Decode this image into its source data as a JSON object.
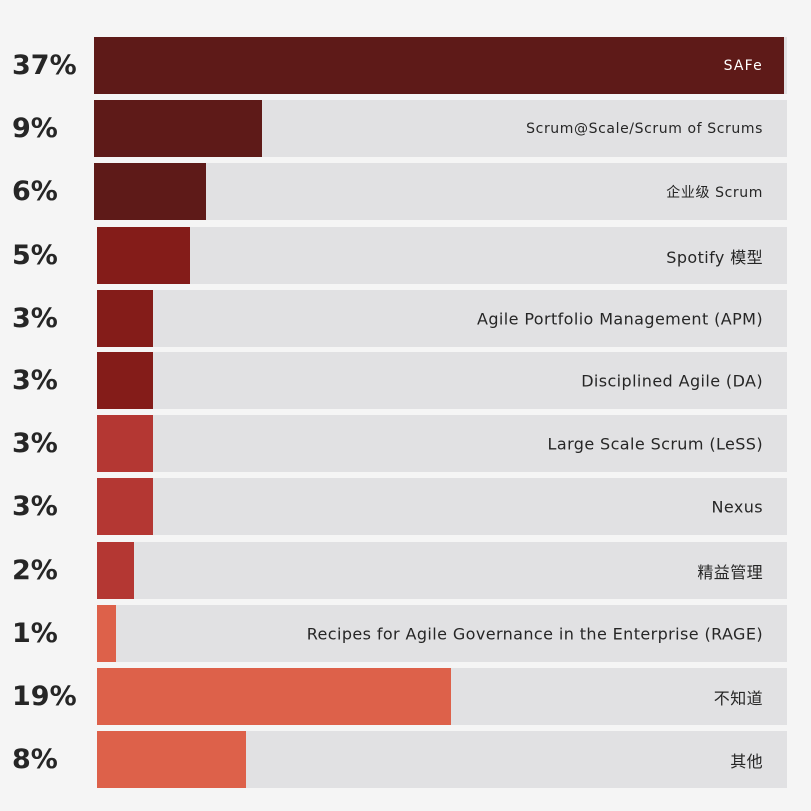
{
  "chart_data": {
    "type": "bar",
    "orientation": "horizontal",
    "categories": [
      "SAFe",
      "Scrum@Scale/Scrum of Scrums",
      "企业级 Scrum",
      "Spotify 模型",
      "Agile Portfolio Management (APM)",
      "Disciplined Agile (DA)",
      "Large Scale Scrum (LeSS)",
      "Nexus",
      "精益管理",
      "Recipes for Agile Governance in the Enterprise (RAGE)",
      "不知道",
      "其他"
    ],
    "values": [
      37,
      9,
      6,
      5,
      3,
      3,
      3,
      3,
      2,
      1,
      19,
      8
    ],
    "value_labels": [
      "37%",
      "9%",
      "6%",
      "5%",
      "3%",
      "3%",
      "3%",
      "3%",
      "2%",
      "1%",
      "19%",
      "8%"
    ],
    "colors": [
      "#5e1a18",
      "#5e1a18",
      "#5e1a18",
      "#841c19",
      "#841c19",
      "#841c19",
      "#b43733",
      "#b43733",
      "#b43733",
      "#dd614a",
      "#dd614a",
      "#dd614a"
    ],
    "track_color": "#e1e1e3",
    "label_color_on_full_bar": "#ffffff",
    "xlim": [
      0,
      37
    ]
  }
}
